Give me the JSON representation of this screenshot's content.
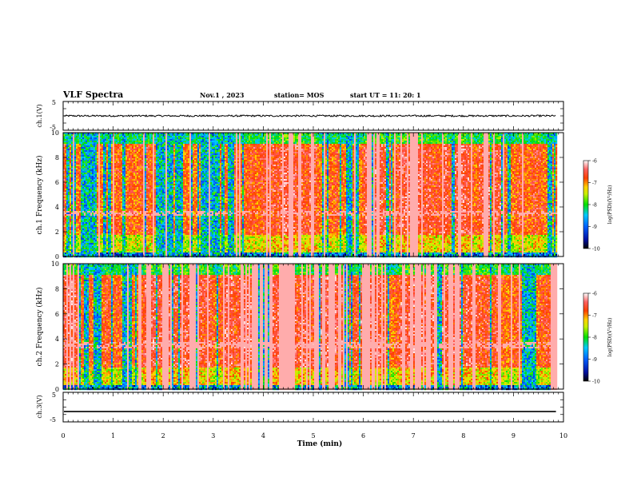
{
  "header": {
    "title": "VLF Spectra",
    "date": "Nov.1 , 2023",
    "station": "station= MOS",
    "start": "start UT = 11: 20: 1"
  },
  "colors": {
    "axis": "#000000",
    "spectro_high": "#ff2a1a",
    "spectro_mid": "#ffee00",
    "spectro_low": "#00d400",
    "spectro_lower": "#00aaff",
    "spectro_min": "#0010a0"
  },
  "chart_data": [
    {
      "type": "line",
      "name": "ch1-waveform",
      "ylabel": "ch.1(V)",
      "ylim": [
        -5,
        5
      ],
      "yticks": [
        "5",
        "-5"
      ],
      "trace_level": 0,
      "trace_noise_amplitude": 0.3
    },
    {
      "type": "heatmap",
      "name": "ch1-spectrogram",
      "ylabel": "ch.1 Frequency (kHz)",
      "xlim": [
        0,
        10
      ],
      "ylim": [
        0,
        10
      ],
      "yticks": [
        "0",
        "2",
        "4",
        "6",
        "8",
        "10"
      ],
      "data_end_min": 9.85,
      "colorbar": {
        "label": "log(PSD)(V²/Hz)",
        "range": [
          -10,
          -6
        ],
        "ticks": [
          "-6",
          "-7",
          "-8",
          "-9",
          "-10"
        ]
      }
    },
    {
      "type": "heatmap",
      "name": "ch2-spectrogram",
      "ylabel": "ch.2 Frequency (kHz)",
      "xlim": [
        0,
        10
      ],
      "ylim": [
        0,
        10
      ],
      "yticks": [
        "0",
        "2",
        "4",
        "6",
        "8",
        "10"
      ],
      "data_end_min": 9.85,
      "colorbar": {
        "label": "log(PSD)(V²/Hz)",
        "range": [
          -10,
          -6
        ],
        "ticks": [
          "-6",
          "-7",
          "-8",
          "-9",
          "-10"
        ]
      }
    },
    {
      "type": "line",
      "name": "ch3-waveform",
      "ylabel": "ch.3(V)",
      "ylim": [
        -5,
        5
      ],
      "yticks": [
        "5",
        "-5"
      ],
      "trace_level": -1.5,
      "xlabel": "Time (min)",
      "xlim": [
        0,
        10
      ],
      "xticks": [
        "0",
        "1",
        "2",
        "3",
        "4",
        "5",
        "6",
        "7",
        "8",
        "9",
        "10"
      ]
    }
  ]
}
